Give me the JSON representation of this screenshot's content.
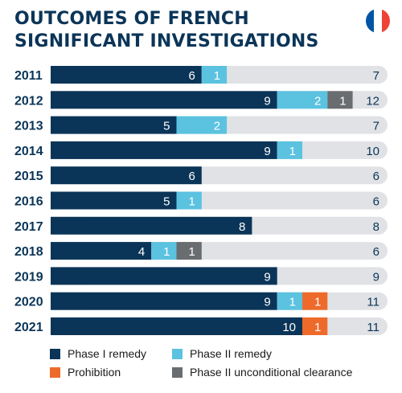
{
  "title_lines": [
    "OUTCOMES OF FRENCH",
    "SIGNIFICANT INVESTIGATIONS"
  ],
  "flag_colors": [
    "#0055a4",
    "#ffffff",
    "#ef4135"
  ],
  "colors": {
    "phase1": "#0b3558",
    "phase2": "#5bc2e0",
    "prohibition": "#ee6a2b",
    "clearance": "#6a6d70",
    "track": "#e0e2e5",
    "label_dark": "#0b3558",
    "segment_text": "#ffffff",
    "total_text": "#0b3558"
  },
  "legend": [
    {
      "key": "phase1",
      "label": "Phase I remedy"
    },
    {
      "key": "phase2",
      "label": "Phase II remedy"
    },
    {
      "key": "prohibition",
      "label": "Prohibition"
    },
    {
      "key": "clearance",
      "label": "Phase II unconditional clearance"
    }
  ],
  "chart_data": {
    "type": "bar",
    "orientation": "horizontal",
    "stacked": true,
    "title": "OUTCOMES OF FRENCH SIGNIFICANT INVESTIGATIONS",
    "categories": [
      "2011",
      "2012",
      "2013",
      "2014",
      "2015",
      "2016",
      "2017",
      "2018",
      "2019",
      "2020",
      "2021"
    ],
    "series": [
      {
        "name": "Phase I remedy",
        "key": "phase1",
        "values": [
          6,
          9,
          5,
          9,
          6,
          5,
          8,
          4,
          9,
          9,
          10
        ]
      },
      {
        "name": "Phase II remedy",
        "key": "phase2",
        "values": [
          1,
          2,
          2,
          1,
          0,
          1,
          0,
          1,
          0,
          1,
          0
        ]
      },
      {
        "name": "Prohibition",
        "key": "prohibition",
        "values": [
          0,
          0,
          0,
          0,
          0,
          0,
          0,
          0,
          0,
          1,
          1
        ]
      },
      {
        "name": "Phase II unconditional clearance",
        "key": "clearance",
        "values": [
          0,
          1,
          0,
          0,
          0,
          0,
          0,
          1,
          0,
          0,
          0
        ]
      }
    ],
    "series_order": [
      "phase1",
      "phase2",
      "prohibition",
      "clearance"
    ],
    "totals": [
      7,
      12,
      7,
      10,
      6,
      6,
      8,
      6,
      9,
      11,
      11
    ],
    "xlim": [
      0,
      14
    ],
    "grid": false,
    "legend_position": "bottom"
  }
}
